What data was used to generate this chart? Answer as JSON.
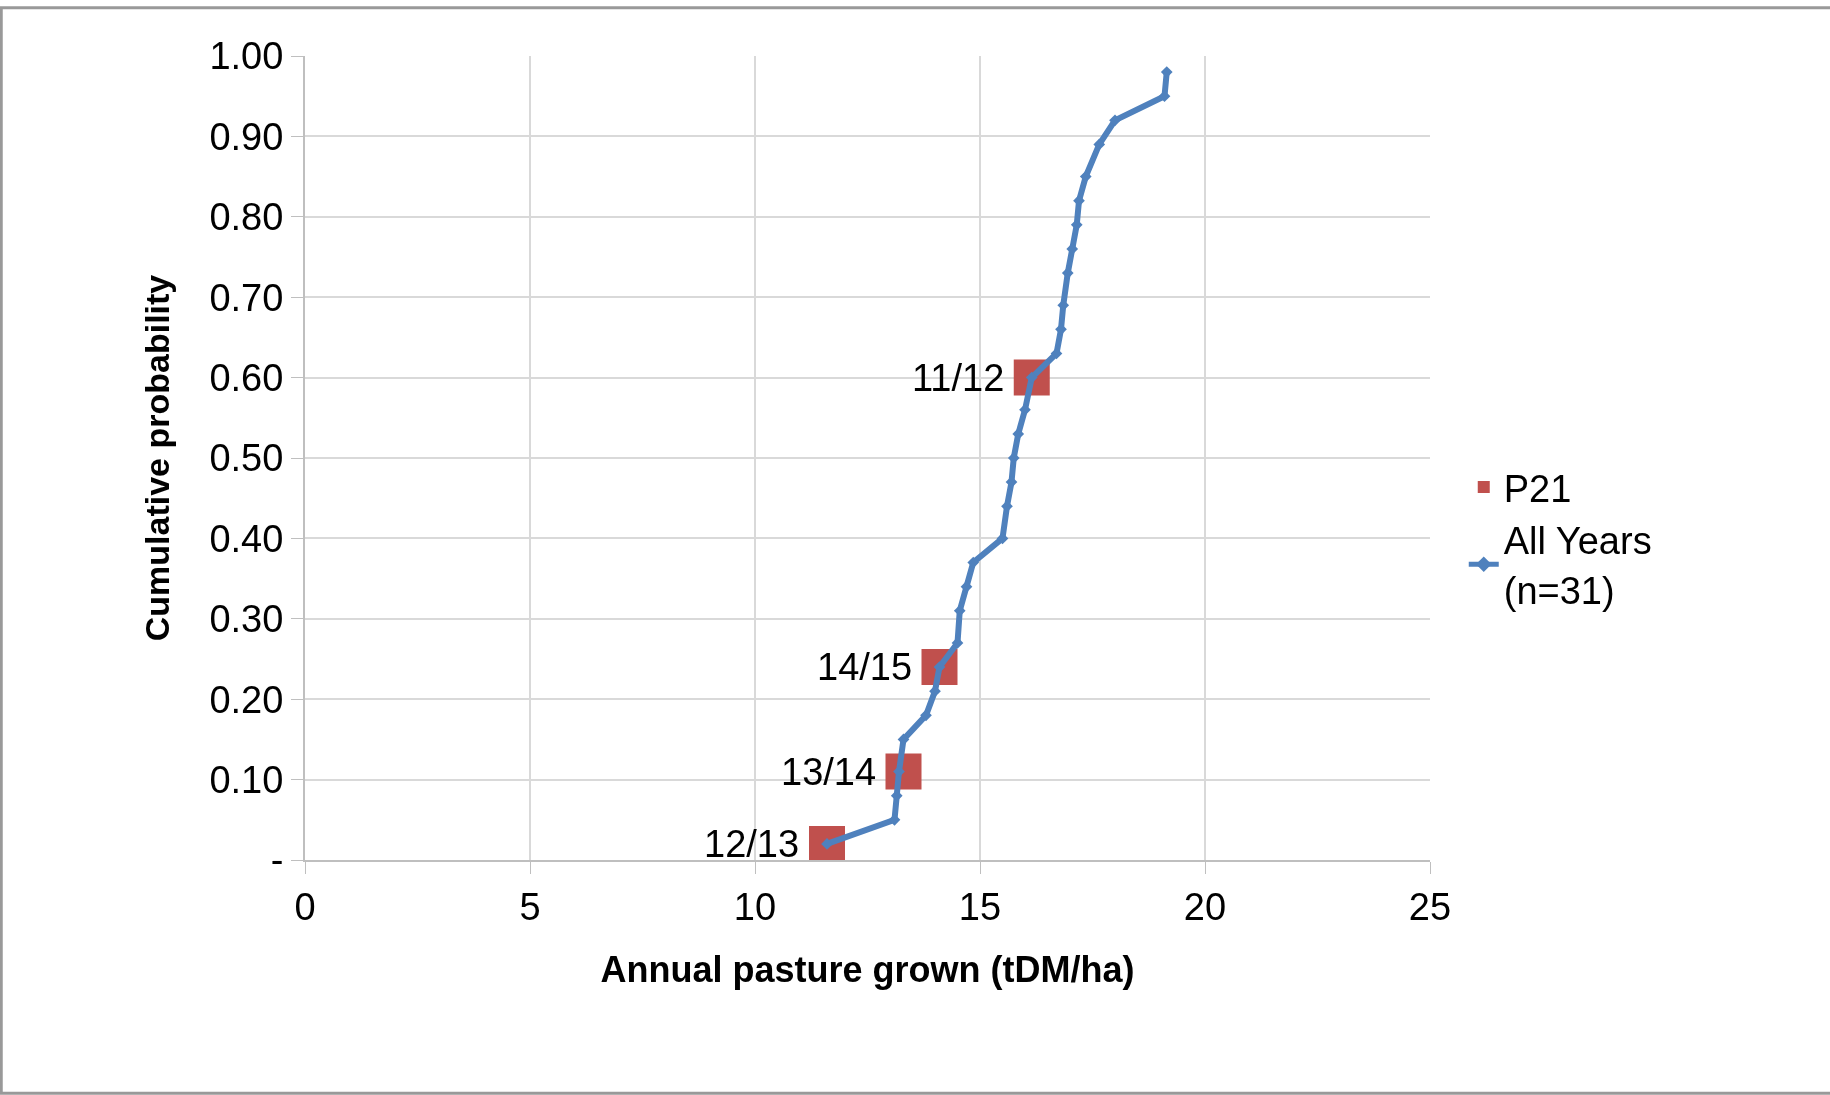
{
  "chart_data": {
    "type": "scatter",
    "xlabel": "Annual pasture grown (tDM/ha)",
    "ylabel": "Cumulative probability",
    "series": [
      {
        "name": "P21",
        "marker": "square",
        "color": "#c0504d",
        "x": [
          11.6,
          13.3,
          14.1,
          16.15
        ],
        "values": [
          0.02,
          0.11,
          0.24,
          0.6
        ]
      },
      {
        "name": "All Years (n=31)",
        "type": "line",
        "marker": "diamond",
        "color": "#4f81bd",
        "x": [
          11.6,
          13.1,
          13.15,
          13.2,
          13.3,
          13.8,
          14.0,
          14.1,
          14.5,
          14.55,
          14.7,
          14.85,
          15.5,
          15.6,
          15.7,
          15.75,
          15.85,
          16.0,
          16.15,
          16.7,
          16.8,
          16.85,
          16.95,
          17.05,
          17.15,
          17.2,
          17.35,
          17.65,
          18.0,
          19.1,
          19.15
        ],
        "values": [
          0.02,
          0.05,
          0.08,
          0.11,
          0.15,
          0.18,
          0.21,
          0.24,
          0.27,
          0.31,
          0.34,
          0.37,
          0.4,
          0.44,
          0.47,
          0.5,
          0.53,
          0.56,
          0.6,
          0.63,
          0.66,
          0.69,
          0.73,
          0.76,
          0.79,
          0.82,
          0.85,
          0.89,
          0.92,
          0.95,
          0.98
        ]
      }
    ],
    "annotations": [
      {
        "text": "12/13",
        "x": 11.6,
        "y": 0.02
      },
      {
        "text": "13/14",
        "x": 13.3,
        "y": 0.11
      },
      {
        "text": "14/15",
        "x": 14.1,
        "y": 0.24
      },
      {
        "text": "11/12",
        "x": 16.15,
        "y": 0.6
      }
    ],
    "xlim": [
      0,
      25
    ],
    "xticks": [
      0,
      5,
      10,
      15,
      20,
      25
    ],
    "ylim": [
      0,
      1
    ],
    "yticks": [
      {
        "value": 0,
        "label": "-"
      },
      {
        "value": 0.1,
        "label": "0.10"
      },
      {
        "value": 0.2,
        "label": "0.20"
      },
      {
        "value": 0.3,
        "label": "0.30"
      },
      {
        "value": 0.4,
        "label": "0.40"
      },
      {
        "value": 0.5,
        "label": "0.50"
      },
      {
        "value": 0.6,
        "label": "0.60"
      },
      {
        "value": 0.7,
        "label": "0.70"
      },
      {
        "value": 0.8,
        "label": "0.80"
      },
      {
        "value": 0.9,
        "label": "0.90"
      },
      {
        "value": 1,
        "label": "1.00"
      }
    ],
    "grid": true,
    "legend": "right"
  }
}
